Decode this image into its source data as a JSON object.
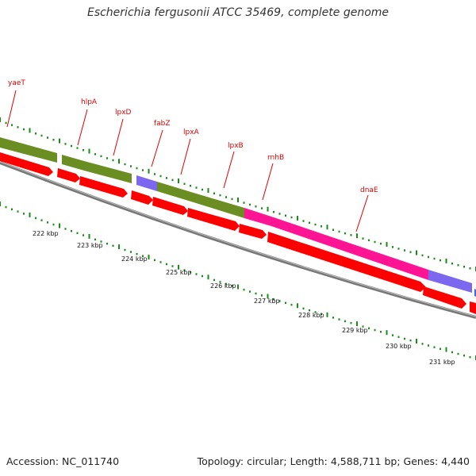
{
  "title": "Escherichia fergusonii ATCC 35469, complete genome",
  "footer": {
    "accession": "Accession: NC_011740",
    "stats": "Topology: circular; Length: 4,588,711 bp; Genes: 4,440"
  },
  "colors": {
    "cds_forward": "#6b8e23",
    "cds_reverse": "#ff0000",
    "hypothetical": "#7b68ee",
    "highlight": "#ff1493",
    "backbone": "#888888",
    "tick": "#1a8a1a",
    "label": "#dd0000"
  },
  "gene_labels": [
    {
      "name": "yaeT"
    },
    {
      "name": "hlpA"
    },
    {
      "name": "lpxD"
    },
    {
      "name": "fabZ"
    },
    {
      "name": "lpxA"
    },
    {
      "name": "lpxB"
    },
    {
      "name": "rnhB"
    },
    {
      "name": "dnaE"
    }
  ],
  "kbp_labels": [
    "222 kbp",
    "223 kbp",
    "224 kbp",
    "225 kbp",
    "226 kbp",
    "227 kbp",
    "228 kbp",
    "229 kbp",
    "230 kbp",
    "231 kbp"
  ]
}
